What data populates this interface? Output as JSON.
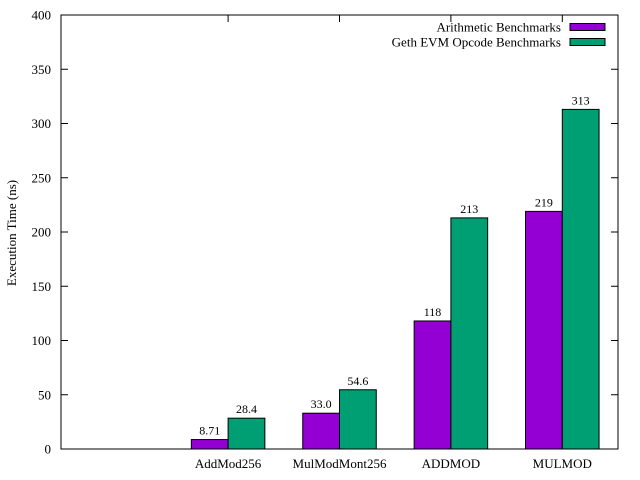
{
  "chart_data": {
    "type": "bar",
    "title": "",
    "xlabel": "",
    "ylabel": "Execution Time (ns)",
    "ylim": [
      0,
      400
    ],
    "yticks": [
      0,
      50,
      100,
      150,
      200,
      250,
      300,
      350,
      400
    ],
    "categories": [
      "AddMod256",
      "MulModMont256",
      "ADDMOD",
      "MULMOD"
    ],
    "series": [
      {
        "name": "Arithmetic Benchmarks",
        "color": "#9400d3",
        "values": [
          8.71,
          33.0,
          118,
          219
        ],
        "value_labels": [
          "8.71",
          "33.0",
          "118",
          "219"
        ],
        "present": [
          true,
          true,
          true,
          true
        ]
      },
      {
        "name": "Geth EVM Opcode Benchmarks",
        "color": "#009e73",
        "values": [
          28.4,
          54.6,
          213,
          313
        ],
        "value_labels": [
          "28.4",
          "54.6",
          "213",
          "313"
        ],
        "present": [
          true,
          true,
          true,
          true
        ]
      }
    ],
    "legend_position": "top-right",
    "grid": false
  }
}
